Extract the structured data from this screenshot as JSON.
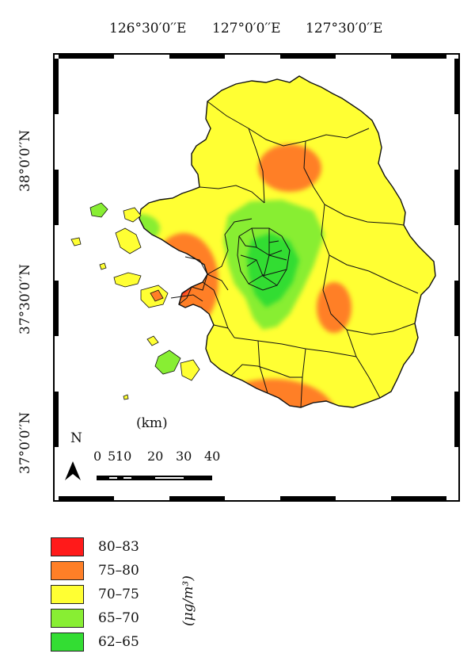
{
  "map": {
    "lon_labels": [
      "126°30′0′′E",
      "127°0′0′′E",
      "127°30′0′′E"
    ],
    "lat_labels": [
      "38°0′0′′N",
      "37°30′0′′N",
      "37°0′0′′N"
    ],
    "north_label": "N",
    "scale_unit": "(km)",
    "scale_ticks": [
      "0",
      "5",
      "10",
      "20",
      "30",
      "40"
    ],
    "colors": {
      "c80_83": "#ff1a1a",
      "c75_80": "#ff7f27",
      "c70_75": "#ffff33",
      "c65_70": "#88ee33",
      "c62_65": "#33dd33",
      "boundary": "#111111",
      "frame": "#000000"
    }
  },
  "legend": {
    "unit": "(μg/m³)",
    "items": [
      {
        "label": "80–83",
        "color": "#ff1a1a"
      },
      {
        "label": "75–80",
        "color": "#ff7f27"
      },
      {
        "label": "70–75",
        "color": "#ffff33"
      },
      {
        "label": "65–70",
        "color": "#88ee33"
      },
      {
        "label": "62–65",
        "color": "#33dd33"
      }
    ]
  }
}
